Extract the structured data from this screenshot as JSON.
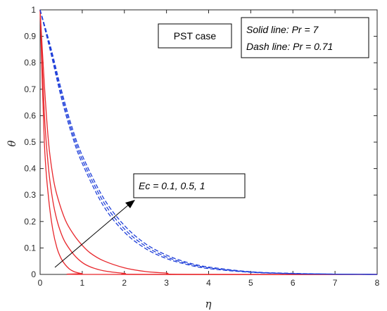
{
  "chart_data": {
    "type": "line",
    "xlabel": "η",
    "ylabel": "θ",
    "xlim": [
      0,
      8
    ],
    "ylim": [
      0,
      1
    ],
    "xticks": [
      "0",
      "1",
      "2",
      "3",
      "4",
      "5",
      "6",
      "7",
      "8"
    ],
    "yticks": [
      "0",
      "0.1",
      "0.2",
      "0.3",
      "0.4",
      "0.5",
      "0.6",
      "0.7",
      "0.8",
      "0.9",
      "1"
    ],
    "grid": false,
    "annotations": {
      "case_label": "PST case",
      "legend_line1": "Solid line: Pr = 7",
      "legend_line2": "Dash line: Pr = 0.71",
      "arrow_label": "Ec = 0.1, 0.5, 1"
    },
    "series": [
      {
        "style": "solid",
        "color": "#e8262b",
        "x": [
          0,
          0.1,
          0.2,
          0.3,
          0.4,
          0.5,
          0.6,
          0.7,
          0.8,
          0.9,
          1.0,
          1.2
        ],
        "y": [
          1.0,
          0.5,
          0.29,
          0.17,
          0.1,
          0.06,
          0.036,
          0.02,
          0.011,
          0.006,
          0.003,
          0.0
        ]
      },
      {
        "style": "solid",
        "color": "#e8262b",
        "x": [
          0,
          0.1,
          0.2,
          0.3,
          0.4,
          0.5,
          0.6,
          0.8,
          1.0,
          1.2,
          1.5,
          2.0,
          2.5
        ],
        "y": [
          1.0,
          0.61,
          0.4,
          0.28,
          0.205,
          0.155,
          0.12,
          0.075,
          0.045,
          0.028,
          0.014,
          0.004,
          0.0
        ]
      },
      {
        "style": "solid",
        "color": "#e8262b",
        "x": [
          0,
          0.1,
          0.2,
          0.3,
          0.4,
          0.6,
          0.8,
          1.0,
          1.2,
          1.5,
          2.0,
          2.5,
          3.0,
          3.5
        ],
        "y": [
          1.0,
          0.72,
          0.5,
          0.375,
          0.3,
          0.205,
          0.15,
          0.11,
          0.08,
          0.052,
          0.025,
          0.011,
          0.005,
          0.0
        ]
      },
      {
        "style": "dashed",
        "color": "#1f3fd9",
        "x": [
          0,
          0.25,
          0.5,
          0.75,
          1.0,
          1.5,
          2.0,
          2.5,
          3.0,
          3.5,
          4.0,
          5.0,
          6.0,
          7.0,
          8.0
        ],
        "y": [
          1.0,
          0.84,
          0.67,
          0.53,
          0.42,
          0.26,
          0.16,
          0.098,
          0.06,
          0.037,
          0.022,
          0.008,
          0.003,
          0.001,
          0.0
        ]
      },
      {
        "style": "dashed",
        "color": "#1f3fd9",
        "x": [
          0,
          0.25,
          0.5,
          0.75,
          1.0,
          1.5,
          2.0,
          2.5,
          3.0,
          3.5,
          4.0,
          5.0,
          6.0,
          7.0,
          8.0
        ],
        "y": [
          1.0,
          0.85,
          0.685,
          0.545,
          0.435,
          0.275,
          0.172,
          0.107,
          0.066,
          0.041,
          0.025,
          0.009,
          0.003,
          0.001,
          0.0
        ]
      },
      {
        "style": "dashed",
        "color": "#1f3fd9",
        "x": [
          0,
          0.25,
          0.5,
          0.75,
          1.0,
          1.5,
          2.0,
          2.5,
          3.0,
          3.5,
          4.0,
          5.0,
          6.0,
          7.0,
          8.0
        ],
        "y": [
          1.0,
          0.86,
          0.7,
          0.56,
          0.45,
          0.29,
          0.185,
          0.116,
          0.073,
          0.045,
          0.028,
          0.01,
          0.004,
          0.001,
          0.0
        ]
      }
    ]
  }
}
